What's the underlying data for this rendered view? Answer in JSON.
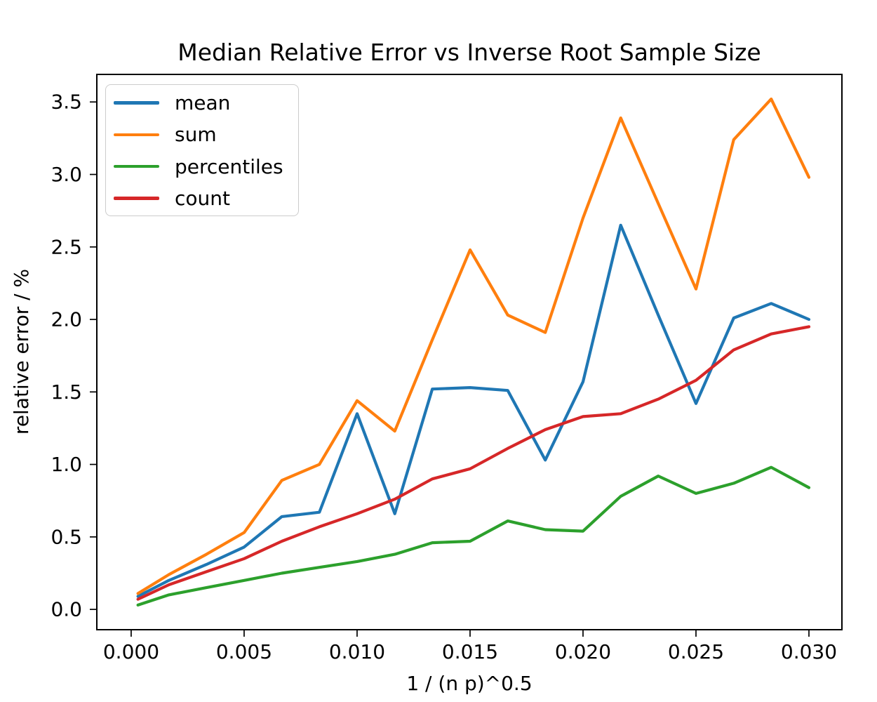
{
  "figure": {
    "title": "Median Relative Error vs Inverse Root Sample Size",
    "xlabel": "1 / (n p)^0.5",
    "ylabel": "relative error / %"
  },
  "chart_data": {
    "type": "line",
    "title": "Median Relative Error vs Inverse Root Sample Size",
    "xlabel": "1 / (n p)^0.5",
    "ylabel": "relative error / %",
    "grid": false,
    "legend_position": "upper left",
    "xlim": [
      -0.00152,
      0.03146
    ],
    "ylim": [
      -0.14,
      3.69
    ],
    "xticks": {
      "values": [
        0.0,
        0.005,
        0.01,
        0.015,
        0.02,
        0.025,
        0.03
      ],
      "labels": [
        "0.000",
        "0.005",
        "0.010",
        "0.015",
        "0.020",
        "0.025",
        "0.030"
      ]
    },
    "yticks": {
      "values": [
        0.0,
        0.5,
        1.0,
        1.5,
        2.0,
        2.5,
        3.0,
        3.5
      ],
      "labels": [
        "0.0",
        "0.5",
        "1.0",
        "1.5",
        "2.0",
        "2.5",
        "3.0",
        "3.5"
      ]
    },
    "x": [
      0.0003,
      0.00167,
      0.00333,
      0.005,
      0.00667,
      0.00833,
      0.01,
      0.01167,
      0.01333,
      0.015,
      0.01667,
      0.01833,
      0.02,
      0.02167,
      0.02333,
      0.025,
      0.02667,
      0.02833,
      0.03
    ],
    "series": [
      {
        "name": "mean",
        "color": "#1f77b4",
        "values": [
          0.09,
          0.2,
          0.31,
          0.43,
          0.64,
          0.67,
          1.35,
          0.66,
          1.52,
          1.53,
          1.51,
          1.03,
          1.57,
          2.65,
          2.03,
          1.42,
          2.01,
          2.11,
          2.0
        ]
      },
      {
        "name": "sum",
        "color": "#ff7f0e",
        "values": [
          0.11,
          0.24,
          0.38,
          0.53,
          0.89,
          1.0,
          1.44,
          1.23,
          1.86,
          2.48,
          2.03,
          1.91,
          2.7,
          3.39,
          2.8,
          2.21,
          3.24,
          3.52,
          2.98
        ]
      },
      {
        "name": "percentiles",
        "color": "#2ca02c",
        "values": [
          0.03,
          0.1,
          0.15,
          0.2,
          0.25,
          0.29,
          0.33,
          0.38,
          0.46,
          0.47,
          0.61,
          0.55,
          0.54,
          0.78,
          0.92,
          0.8,
          0.87,
          0.98,
          0.84
        ]
      },
      {
        "name": "count",
        "color": "#d62728",
        "values": [
          0.07,
          0.17,
          0.26,
          0.35,
          0.47,
          0.57,
          0.66,
          0.76,
          0.9,
          0.97,
          1.11,
          1.24,
          1.33,
          1.35,
          1.45,
          1.58,
          1.79,
          1.9,
          1.95
        ]
      }
    ]
  }
}
